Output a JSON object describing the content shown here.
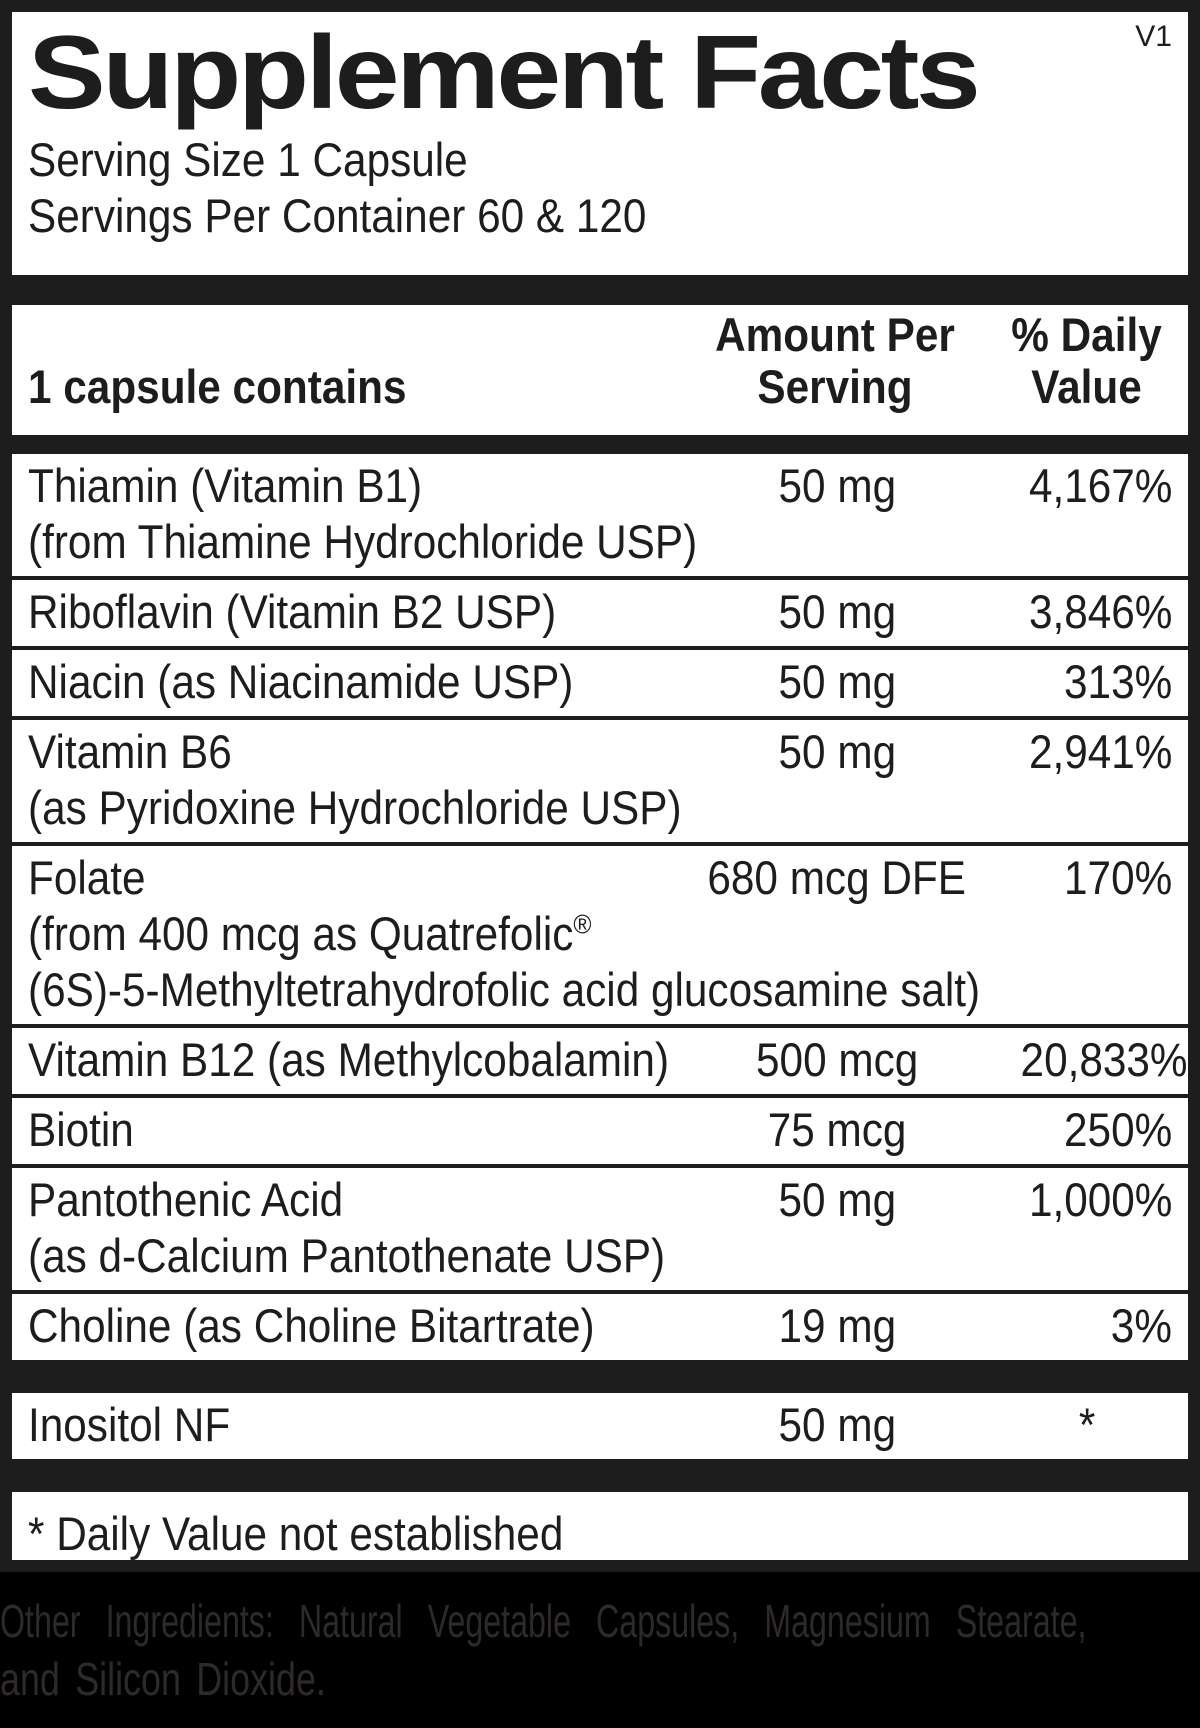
{
  "version_tag": "V1",
  "title": "Supplement Facts",
  "serving": {
    "size": "Serving Size 1 Capsule",
    "per_container": "Servings Per Container 60 & 120"
  },
  "table": {
    "col1_header": "1 capsule contains",
    "col2_header": "Amount Per Serving",
    "col3_header": "% Daily Value",
    "rows": [
      {
        "name": "Thiamin (Vitamin B1)",
        "name2": "(from Thiamine Hydrochloride USP)",
        "amount": "50 mg",
        "dv": "4,167%"
      },
      {
        "name": "Riboflavin (Vitamin B2 USP)",
        "amount": "50 mg",
        "dv": "3,846%"
      },
      {
        "name": "Niacin (as Niacinamide USP)",
        "amount": "50 mg",
        "dv": "313%"
      },
      {
        "name": "Vitamin B6",
        "name2": "(as Pyridoxine Hydrochloride USP)",
        "amount": "50 mg",
        "dv": "2,941%"
      },
      {
        "name": "Folate",
        "name2": "(from 400 mcg as Quatrefolic",
        "name2_sup": "®",
        "name3": "(6S)-5-Methyltetrahydrofolic acid glucosamine salt)",
        "amount": "680 mcg DFE",
        "dv": "170%"
      },
      {
        "name": "Vitamin B12 (as Methylcobalamin)",
        "amount": "500 mcg",
        "dv": "20,833%"
      },
      {
        "name": "Biotin",
        "amount": "75 mcg",
        "dv": "250%"
      },
      {
        "name": "Pantothenic Acid",
        "name2": "(as d-Calcium Pantothenate USP)",
        "amount": "50 mg",
        "dv": "1,000%"
      },
      {
        "name": "Choline (as Choline Bitartrate)",
        "amount": "19 mg",
        "dv": "3%"
      }
    ],
    "extra_row": {
      "name": "Inositol NF",
      "amount": "50 mg",
      "dv": "*"
    }
  },
  "footnote": "* Daily Value not established",
  "other_ingredients": {
    "line1": "Other Ingredients: Natural Vegetable Capsules, Magnesium Stearate,",
    "line2": "and Silicon Dioxide."
  },
  "colors": {
    "ink": "#1d1d1d",
    "paper": "#ffffff",
    "footer_bg": "#000000",
    "footer_text": "#2e2a2b"
  }
}
